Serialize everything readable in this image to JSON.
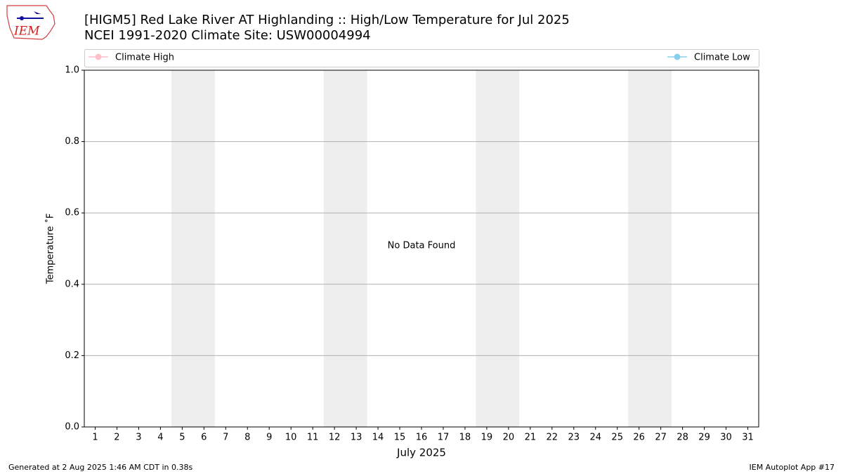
{
  "chart_data": {
    "type": "line",
    "title": "[HIGM5] Red Lake River  AT Highlanding :: High/Low Temperature for Jul 2025",
    "subtitle": "NCEI 1991-2020 Climate Site: USW00004994",
    "xlabel": "July 2025",
    "ylabel": "Temperature ˚F",
    "annotation": "No Data Found",
    "footer_left": "Generated at 2 Aug 2025 1:46 AM CDT in 0.38s",
    "footer_right": "IEM Autoplot App #17",
    "logo_text": "IEM",
    "series": [
      {
        "name": "Climate High",
        "color": "#ffc0cb",
        "values": []
      },
      {
        "name": "Climate Low",
        "color": "#87ceeb",
        "values": []
      }
    ],
    "x": [],
    "xlim": [
      0.5,
      31.5
    ],
    "xticks": [
      1,
      2,
      3,
      4,
      5,
      6,
      7,
      8,
      9,
      10,
      11,
      12,
      13,
      14,
      15,
      16,
      17,
      18,
      19,
      20,
      21,
      22,
      23,
      24,
      25,
      26,
      27,
      28,
      29,
      30,
      31
    ],
    "ylim": [
      0,
      1
    ],
    "yticks": [
      {
        "value": 0,
        "label": "0.0"
      },
      {
        "value": 0.2,
        "label": "0.2"
      },
      {
        "value": 0.4,
        "label": "0.4"
      },
      {
        "value": 0.6,
        "label": "0.6"
      },
      {
        "value": 0.8,
        "label": "0.8"
      },
      {
        "value": 1,
        "label": "1.0"
      }
    ],
    "shaded_spans": [
      [
        4.5,
        6.5
      ],
      [
        11.5,
        13.5
      ],
      [
        18.5,
        20.5
      ],
      [
        25.5,
        27.5
      ]
    ],
    "shade_color": "#eeeeee",
    "grid": "y"
  }
}
